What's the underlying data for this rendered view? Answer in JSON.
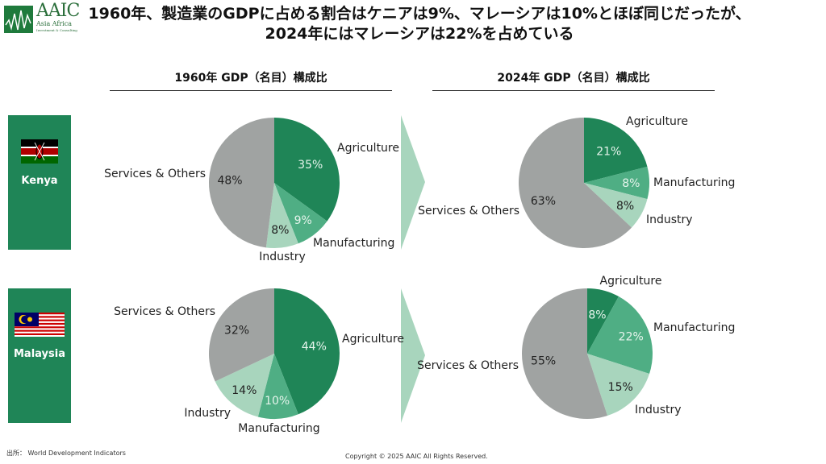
{
  "logo": {
    "name": "AAIC",
    "subtitle": "Asia Africa",
    "tagline": "Investment & Consulting"
  },
  "title": {
    "line1": "1960年、製造業のGDPに占める割合はケニアは9%、マレーシアは10%とほぼ同じだったが、",
    "line2": "2024年にはマレーシアは22%を占めている"
  },
  "columns": [
    {
      "label": "1960年 GDP（名目）構成比"
    },
    {
      "label": "2024年 GDP（名目）構成比"
    }
  ],
  "countries": [
    {
      "name": "Kenya",
      "flag": "kenya-flag"
    },
    {
      "name": "Malaysia",
      "flag": "malaysia-flag"
    }
  ],
  "colors": {
    "agriculture": "#1f8557",
    "manufacturing": "#4fae84",
    "industry": "#a8d5bd",
    "services": "#a0a3a2",
    "panel": "#1f8557",
    "arrow": "#a8d5bd"
  },
  "chart_data": [
    {
      "type": "pie",
      "title": "Kenya 1960 GDP (nominal) composition",
      "categories": [
        "Agriculture",
        "Manufacturing",
        "Industry",
        "Services & Others"
      ],
      "values": [
        35,
        9,
        8,
        48
      ],
      "labels": [
        "35%",
        "9%",
        "8%",
        "48%"
      ]
    },
    {
      "type": "pie",
      "title": "Kenya 2024 GDP (nominal) composition",
      "categories": [
        "Agriculture",
        "Manufacturing",
        "Industry",
        "Services & Others"
      ],
      "values": [
        21,
        8,
        8,
        63
      ],
      "labels": [
        "21%",
        "8%",
        "8%",
        "63%"
      ]
    },
    {
      "type": "pie",
      "title": "Malaysia 1960 GDP (nominal) composition",
      "categories": [
        "Agriculture",
        "Manufacturing",
        "Industry",
        "Services & Others"
      ],
      "values": [
        44,
        10,
        14,
        32
      ],
      "labels": [
        "44%",
        "10%",
        "14%",
        "32%"
      ]
    },
    {
      "type": "pie",
      "title": "Malaysia 2024 GDP (nominal) composition",
      "categories": [
        "Agriculture",
        "Manufacturing",
        "Industry",
        "Services & Others"
      ],
      "values": [
        8,
        22,
        15,
        55
      ],
      "labels": [
        "8%",
        "22%",
        "15%",
        "55%"
      ]
    }
  ],
  "footer": {
    "source": "出所： World Development Indicators",
    "copyright": "Copyright © 2025 AAIC All Rights Reserved."
  }
}
